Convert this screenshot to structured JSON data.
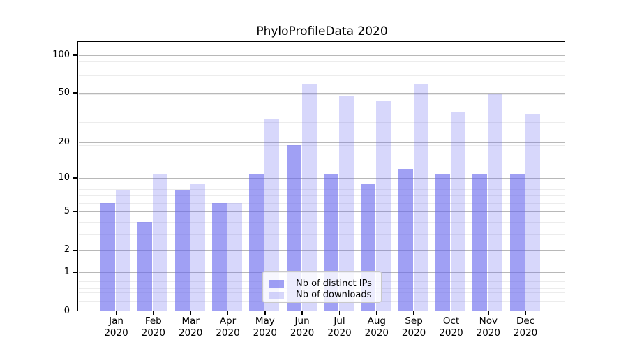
{
  "figure": {
    "title": "PhyloProfileData 2020"
  },
  "chart_data": {
    "type": "bar",
    "title": "PhyloProfileData 2020",
    "year": "2020",
    "months": [
      "Jan",
      "Feb",
      "Mar",
      "Apr",
      "May",
      "Jun",
      "Jul",
      "Aug",
      "Sep",
      "Oct",
      "Nov",
      "Dec"
    ],
    "categories": [
      "Jan 2020",
      "Feb 2020",
      "Mar 2020",
      "Apr 2020",
      "May 2020",
      "Jun 2020",
      "Jul 2020",
      "Aug 2020",
      "Sep 2020",
      "Oct 2020",
      "Nov 2020",
      "Dec 2020"
    ],
    "series": [
      {
        "name": "Nb of distinct IPs",
        "key": "ips",
        "color": "rgba(102,102,238,0.62)",
        "values": [
          6,
          4,
          8,
          6,
          11,
          19,
          11,
          9,
          12,
          11,
          11,
          11
        ]
      },
      {
        "name": "Nb of downloads",
        "key": "downloads",
        "color": "rgba(102,102,238,0.26)",
        "values": [
          8,
          11,
          9,
          6,
          31,
          60,
          48,
          44,
          59,
          35,
          50,
          34
        ]
      }
    ],
    "xlabel": "",
    "ylabel": "",
    "yscale": "log1p",
    "ylim": [
      0,
      125
    ],
    "y_major_ticks": [
      100,
      50,
      20,
      10,
      5,
      2,
      1,
      0
    ],
    "y_minor_gridlines": [
      0.1,
      0.2,
      0.3,
      0.4,
      0.5,
      0.6,
      0.7,
      0.8,
      0.9,
      3,
      4,
      6,
      7,
      8,
      9,
      19,
      29,
      39,
      49,
      59,
      69,
      79,
      89
    ],
    "grid": true,
    "legend_position": "lower center inside"
  },
  "colors": {
    "bar_dark": "rgba(102,102,238,0.62)",
    "bar_light": "rgba(102,102,238,0.26)",
    "grid_major": "#b8b8b8",
    "grid_minor": "#ececec",
    "spine": "#000000",
    "legend_border": "#c9c9c9",
    "legend_bg": "rgba(255,255,255,0.8)"
  }
}
